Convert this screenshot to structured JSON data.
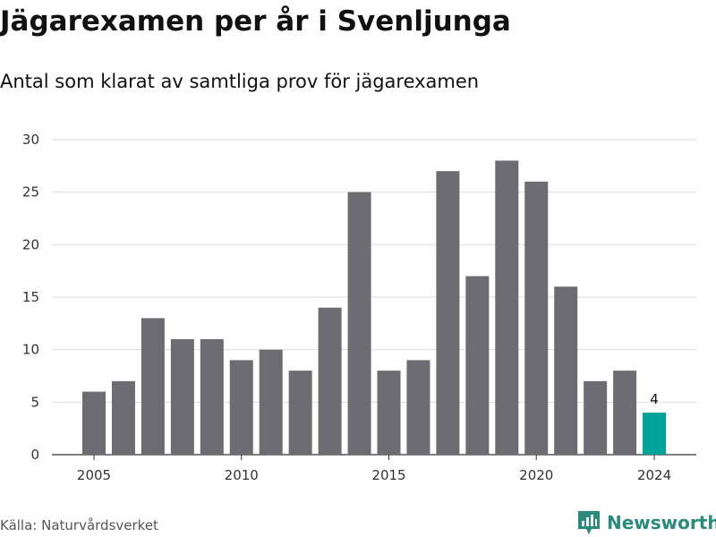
{
  "header": {
    "title": "Jägarexamen per år i Svenljunga",
    "subtitle": "Antal som klarat av samtliga prov för jägarexamen"
  },
  "footer": {
    "source": "Källa: Naturvårdsverket",
    "brand": "Newsworthy"
  },
  "colors": {
    "bar": "#6d6c72",
    "highlight": "#00a39a",
    "grid": "#dcdcdc",
    "brand": "#2a8a7c"
  },
  "chart_data": {
    "type": "bar",
    "categories": [
      "2005",
      "2006",
      "2007",
      "2008",
      "2009",
      "2010",
      "2011",
      "2012",
      "2013",
      "2014",
      "2015",
      "2016",
      "2017",
      "2018",
      "2019",
      "2020",
      "2021",
      "2022",
      "2023",
      "2024"
    ],
    "values": [
      6,
      7,
      13,
      11,
      11,
      9,
      10,
      8,
      14,
      25,
      8,
      9,
      27,
      17,
      28,
      26,
      16,
      7,
      8,
      4
    ],
    "xticks": [
      "2005",
      "2010",
      "2015",
      "2020",
      "2024"
    ],
    "yticks": [
      0,
      5,
      10,
      15,
      20,
      25,
      30
    ],
    "ylim": [
      0,
      30
    ],
    "highlight": {
      "category": "2024",
      "label": "4"
    },
    "grid": true,
    "legend": "none",
    "title": "Jägarexamen per år i Svenljunga",
    "xlabel": "",
    "ylabel": ""
  }
}
